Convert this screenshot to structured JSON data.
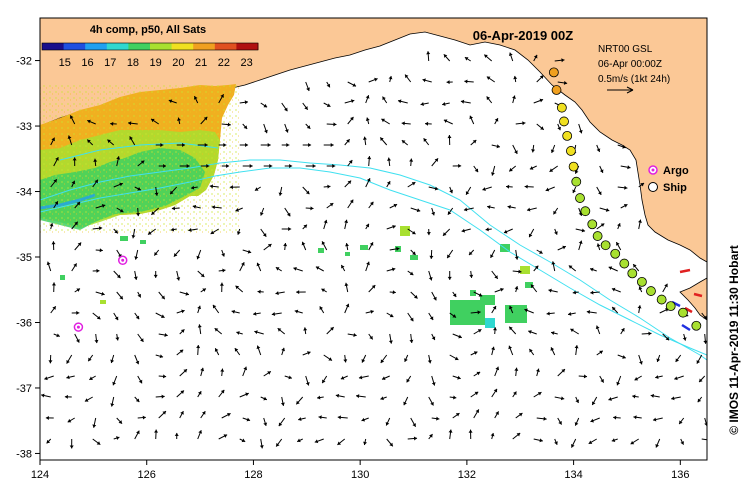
{
  "colorbar": {
    "title": "4h comp, p50, All Sats",
    "ticks": [
      "15",
      "16",
      "17",
      "18",
      "19",
      "20",
      "21",
      "22",
      "23"
    ],
    "vmin": 14,
    "vmax": 23.5,
    "colors": [
      "#1a0f8c",
      "#1f4fe0",
      "#20a0f0",
      "#30d8d0",
      "#40d060",
      "#a8e030",
      "#f0e020",
      "#f0a020",
      "#e05020",
      "#b01010"
    ]
  },
  "title": "06-Apr-2019 00Z",
  "info": {
    "line1": "NRT00 GSL",
    "line2": "06-Apr 00:00Z",
    "line3": "0.5m/s (1kt 24h)"
  },
  "legend": {
    "argo": "Argo",
    "ship": "Ship",
    "argo_color": "#e020e0",
    "ship_color": "#000000"
  },
  "credit": "© IMOS 11-Apr-2019 11:30 Hobart",
  "axes": {
    "lon_min": 124,
    "lon_max": 136.5,
    "lat_min": -38.1,
    "lat_max": -31.35,
    "x_ticks": [
      "124",
      "126",
      "128",
      "130",
      "132",
      "134",
      "136"
    ],
    "y_ticks": [
      "-32",
      "-33",
      "-34",
      "-35",
      "-36",
      "-37",
      "-38"
    ]
  },
  "colors": {
    "land": "#fbc896",
    "coast": "#000000",
    "contour": "#40e0f0",
    "sst_warm": "#f0a020",
    "sst_mid": "#a8e030",
    "sst_cool": "#40d060"
  },
  "argo_floats": [
    {
      "lon": 125.55,
      "lat": -35.05
    },
    {
      "lon": 124.72,
      "lat": -36.07
    }
  ],
  "ship_track": [
    {
      "lon": 133.63,
      "lat": -32.18,
      "t": 21.5
    },
    {
      "lon": 133.68,
      "lat": -32.45,
      "t": 21.0
    },
    {
      "lon": 133.78,
      "lat": -32.72,
      "t": 20.5
    },
    {
      "lon": 133.82,
      "lat": -32.93,
      "t": 20.5
    },
    {
      "lon": 133.88,
      "lat": -33.15,
      "t": 20.0
    },
    {
      "lon": 133.95,
      "lat": -33.38,
      "t": 20.0
    },
    {
      "lon": 134.0,
      "lat": -33.62,
      "t": 20.5
    },
    {
      "lon": 134.05,
      "lat": -33.85,
      "t": 19.5
    },
    {
      "lon": 134.12,
      "lat": -34.1,
      "t": 19.5
    },
    {
      "lon": 134.22,
      "lat": -34.3,
      "t": 19.5
    },
    {
      "lon": 134.35,
      "lat": -34.5,
      "t": 19.5
    },
    {
      "lon": 134.45,
      "lat": -34.68,
      "t": 19.5
    },
    {
      "lon": 134.6,
      "lat": -34.82,
      "t": 19.5
    },
    {
      "lon": 134.78,
      "lat": -34.95,
      "t": 19.5
    },
    {
      "lon": 134.95,
      "lat": -35.1,
      "t": 19.5
    },
    {
      "lon": 135.1,
      "lat": -35.25,
      "t": 19.5
    },
    {
      "lon": 135.28,
      "lat": -35.38,
      "t": 19.5
    },
    {
      "lon": 135.45,
      "lat": -35.52,
      "t": 19.0
    },
    {
      "lon": 135.65,
      "lat": -35.65,
      "t": 19.0
    },
    {
      "lon": 135.82,
      "lat": -35.75,
      "t": 19.0
    },
    {
      "lon": 136.05,
      "lat": -35.85,
      "t": 19.0
    },
    {
      "lon": 136.3,
      "lat": -36.05,
      "t": 19.0
    }
  ]
}
